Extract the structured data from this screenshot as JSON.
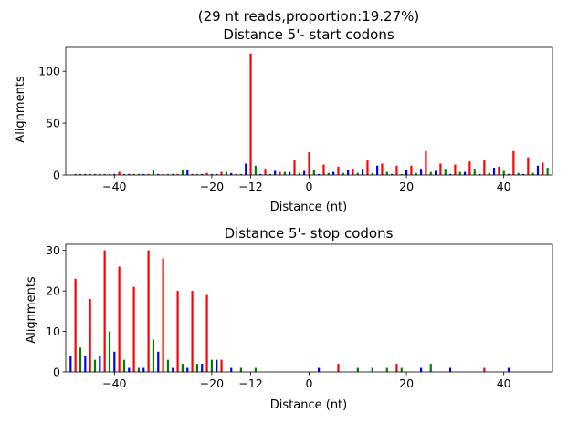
{
  "chart_data": [
    {
      "type": "bar",
      "title_line1": "(29 nt reads,proportion:19.27%)",
      "title": "Distance 5'- start codons",
      "xlabel": "Distance (nt)",
      "ylabel": "Alignments",
      "xlim": [
        -50,
        50
      ],
      "ylim": [
        0,
        123
      ],
      "xticks": [
        -40,
        -20,
        -12,
        0,
        20,
        40
      ],
      "yticks": [
        0,
        50,
        100
      ],
      "x_tick_labels": [
        "−40",
        "−20",
        "−12",
        "0",
        "20",
        "40"
      ],
      "y_tick_labels": [
        "0",
        "50",
        "100"
      ],
      "colors": [
        "#ff0000",
        "#008000",
        "#0000ff"
      ],
      "bars": [
        [
          -48,
          1
        ],
        [
          -47,
          1
        ],
        [
          -46,
          1
        ],
        [
          -45,
          1
        ],
        [
          -44,
          1
        ],
        [
          -43,
          1
        ],
        [
          -42,
          1
        ],
        [
          -41,
          1
        ],
        [
          -40,
          1
        ],
        [
          -39,
          3
        ],
        [
          -38,
          1
        ],
        [
          -37,
          1
        ],
        [
          -36,
          1
        ],
        [
          -35,
          1
        ],
        [
          -34,
          1
        ],
        [
          -33,
          1
        ],
        [
          -32,
          5
        ],
        [
          -31,
          1
        ],
        [
          -30,
          1
        ],
        [
          -29,
          1
        ],
        [
          -28,
          1
        ],
        [
          -27,
          1
        ],
        [
          -26,
          5
        ],
        [
          -25,
          5
        ],
        [
          -24,
          1
        ],
        [
          -23,
          1
        ],
        [
          -22,
          1
        ],
        [
          -21,
          2
        ],
        [
          -20,
          1
        ],
        [
          -19,
          1
        ],
        [
          -18,
          3
        ],
        [
          -17,
          3
        ],
        [
          -16,
          2
        ],
        [
          -15,
          1
        ],
        [
          -14,
          1
        ],
        [
          -13,
          11
        ],
        [
          -12,
          117
        ],
        [
          -11,
          9
        ],
        [
          -10,
          1
        ],
        [
          -9,
          6
        ],
        [
          -8,
          1
        ],
        [
          -7,
          4
        ],
        [
          -6,
          3
        ],
        [
          -5,
          3
        ],
        [
          -4,
          3
        ],
        [
          -3,
          14
        ],
        [
          -2,
          2
        ],
        [
          -1,
          4
        ],
        [
          0,
          22
        ],
        [
          1,
          5
        ],
        [
          2,
          1
        ],
        [
          3,
          10
        ],
        [
          4,
          2
        ],
        [
          5,
          3
        ],
        [
          6,
          8
        ],
        [
          7,
          2
        ],
        [
          8,
          5
        ],
        [
          9,
          6
        ],
        [
          10,
          2
        ],
        [
          11,
          6
        ],
        [
          12,
          14
        ],
        [
          13,
          2
        ],
        [
          14,
          9
        ],
        [
          15,
          11
        ],
        [
          16,
          3
        ],
        [
          17,
          1
        ],
        [
          18,
          9
        ],
        [
          19,
          1
        ],
        [
          20,
          5
        ],
        [
          21,
          9
        ],
        [
          22,
          2
        ],
        [
          23,
          6
        ],
        [
          24,
          23
        ],
        [
          25,
          3
        ],
        [
          26,
          4
        ],
        [
          27,
          11
        ],
        [
          28,
          6
        ],
        [
          29,
          1
        ],
        [
          30,
          10
        ],
        [
          31,
          3
        ],
        [
          32,
          3
        ],
        [
          33,
          13
        ],
        [
          34,
          6
        ],
        [
          35,
          1
        ],
        [
          36,
          14
        ],
        [
          37,
          2
        ],
        [
          38,
          7
        ],
        [
          39,
          8
        ],
        [
          40,
          4
        ],
        [
          41,
          1
        ],
        [
          42,
          23
        ],
        [
          43,
          2
        ],
        [
          44,
          1
        ],
        [
          45,
          17
        ],
        [
          46,
          2
        ],
        [
          47,
          9
        ],
        [
          48,
          12
        ],
        [
          49,
          7
        ]
      ]
    },
    {
      "type": "bar",
      "title": "Distance 5'- stop codons",
      "xlabel": "Distance (nt)",
      "ylabel": "Alignments",
      "xlim": [
        -50,
        50
      ],
      "ylim": [
        0,
        31.5
      ],
      "xticks": [
        -40,
        -20,
        -12,
        0,
        20,
        40
      ],
      "yticks": [
        0,
        10,
        20,
        30
      ],
      "x_tick_labels": [
        "−40",
        "−20",
        "−12",
        "0",
        "20",
        "40"
      ],
      "y_tick_labels": [
        "0",
        "10",
        "20",
        "30"
      ],
      "colors": [
        "#ff0000",
        "#008000",
        "#0000ff"
      ],
      "bars": [
        [
          -49,
          4
        ],
        [
          -48,
          23
        ],
        [
          -47,
          6
        ],
        [
          -46,
          4
        ],
        [
          -45,
          18
        ],
        [
          -44,
          3
        ],
        [
          -43,
          4
        ],
        [
          -42,
          30
        ],
        [
          -41,
          10
        ],
        [
          -40,
          5
        ],
        [
          -39,
          26
        ],
        [
          -38,
          3
        ],
        [
          -37,
          1
        ],
        [
          -36,
          21
        ],
        [
          -35,
          1
        ],
        [
          -34,
          1
        ],
        [
          -33,
          30
        ],
        [
          -32,
          8
        ],
        [
          -31,
          5
        ],
        [
          -30,
          28
        ],
        [
          -29,
          3
        ],
        [
          -28,
          1
        ],
        [
          -27,
          20
        ],
        [
          -26,
          2
        ],
        [
          -25,
          1
        ],
        [
          -24,
          20
        ],
        [
          -23,
          2
        ],
        [
          -22,
          2
        ],
        [
          -21,
          19
        ],
        [
          -20,
          3
        ],
        [
          -19,
          3
        ],
        [
          -18,
          3
        ],
        [
          -16,
          1
        ],
        [
          -14,
          1
        ],
        [
          -11,
          1
        ],
        [
          2,
          1
        ],
        [
          6,
          2
        ],
        [
          10,
          1
        ],
        [
          13,
          1
        ],
        [
          16,
          1
        ],
        [
          18,
          2
        ],
        [
          19,
          1
        ],
        [
          23,
          1
        ],
        [
          25,
          2
        ],
        [
          29,
          1
        ],
        [
          36,
          1
        ],
        [
          41,
          1
        ]
      ]
    }
  ]
}
